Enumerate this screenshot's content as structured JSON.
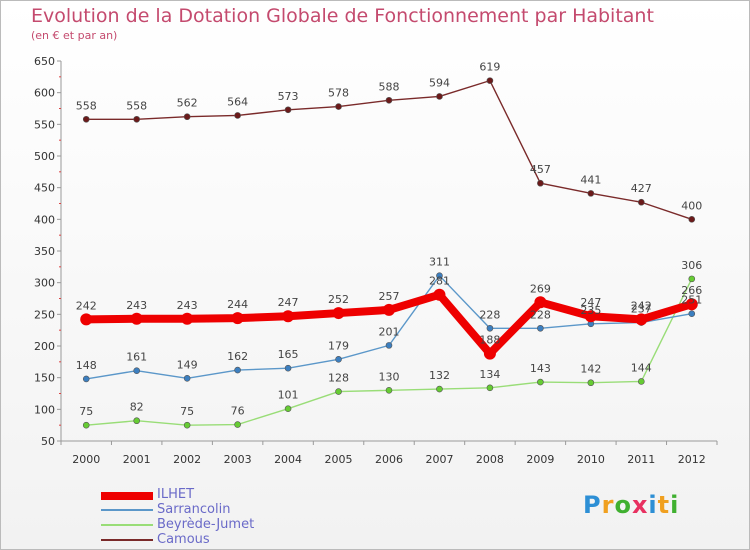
{
  "chart_data": {
    "type": "line",
    "title": "Evolution de la Dotation Globale de Fonctionnement par Habitant",
    "subtitle": "(en € et par an)",
    "x": [
      "2000",
      "2001",
      "2002",
      "2003",
      "2004",
      "2005",
      "2006",
      "2007",
      "2008",
      "2009",
      "2010",
      "2011",
      "2012"
    ],
    "ylim": [
      50,
      650
    ],
    "yticks": [
      50,
      100,
      150,
      200,
      250,
      300,
      350,
      400,
      450,
      500,
      550,
      600,
      650
    ],
    "series": [
      {
        "name": "Camous",
        "color": "#7a2a2a",
        "marker": "#6b1a1a",
        "values": [
          558,
          558,
          562,
          564,
          573,
          578,
          588,
          594,
          619,
          457,
          441,
          427,
          400
        ]
      },
      {
        "name": "Beyrède-Jumet",
        "color": "#99dd77",
        "marker": "#66cc33",
        "values": [
          75,
          82,
          75,
          76,
          101,
          128,
          130,
          132,
          134,
          143,
          142,
          144,
          306
        ]
      },
      {
        "name": "Sarrancolin",
        "color": "#5b97c9",
        "marker": "#3c7fc0",
        "values": [
          148,
          161,
          149,
          162,
          165,
          179,
          201,
          311,
          228,
          228,
          235,
          237,
          251
        ]
      },
      {
        "name": "ILHET",
        "color": "#ee0000",
        "marker": "#ee0000",
        "values": [
          242,
          243,
          243,
          244,
          247,
          252,
          257,
          281,
          188,
          269,
          247,
          242,
          266
        ]
      }
    ],
    "legend": [
      "ILHET",
      "Sarrancolin",
      "Beyrède-Jumet",
      "Camous"
    ],
    "value_labels": {
      "ILHET": [
        "242",
        "243",
        "243",
        "244",
        "247",
        "252",
        "257",
        "281",
        "188",
        "269",
        "247",
        "242",
        "266"
      ],
      "Sarrancolin": [
        "148",
        "161",
        "149",
        "162",
        "165",
        "179",
        "201",
        "311",
        "228",
        "228",
        "235",
        "237",
        "251"
      ],
      "Beyrède-Jumet": [
        "75",
        "82",
        "75",
        "76",
        "101",
        "128",
        "130",
        "132",
        "134",
        "143",
        "142",
        "144",
        "306"
      ],
      "Camous": [
        "558",
        "558",
        "562",
        "564",
        "573",
        "578",
        "588",
        "594",
        "619",
        "457",
        "441",
        "427",
        "400"
      ]
    }
  },
  "legend_items": [
    {
      "label": "ILHET",
      "color": "#ee0000"
    },
    {
      "label": "Sarrancolin",
      "color": "#5b97c9"
    },
    {
      "label": "Beyrède-Jumet",
      "color": "#99dd77"
    },
    {
      "label": "Camous",
      "color": "#7a2a2a"
    }
  ],
  "logo": {
    "letters": [
      "P",
      "r",
      "o",
      "x",
      "i",
      "t",
      "i"
    ],
    "colors": [
      "#2d8fd5",
      "#f0a020",
      "#40b030",
      "#e83060",
      "#2d8fd5",
      "#f0a020",
      "#40b030"
    ]
  }
}
